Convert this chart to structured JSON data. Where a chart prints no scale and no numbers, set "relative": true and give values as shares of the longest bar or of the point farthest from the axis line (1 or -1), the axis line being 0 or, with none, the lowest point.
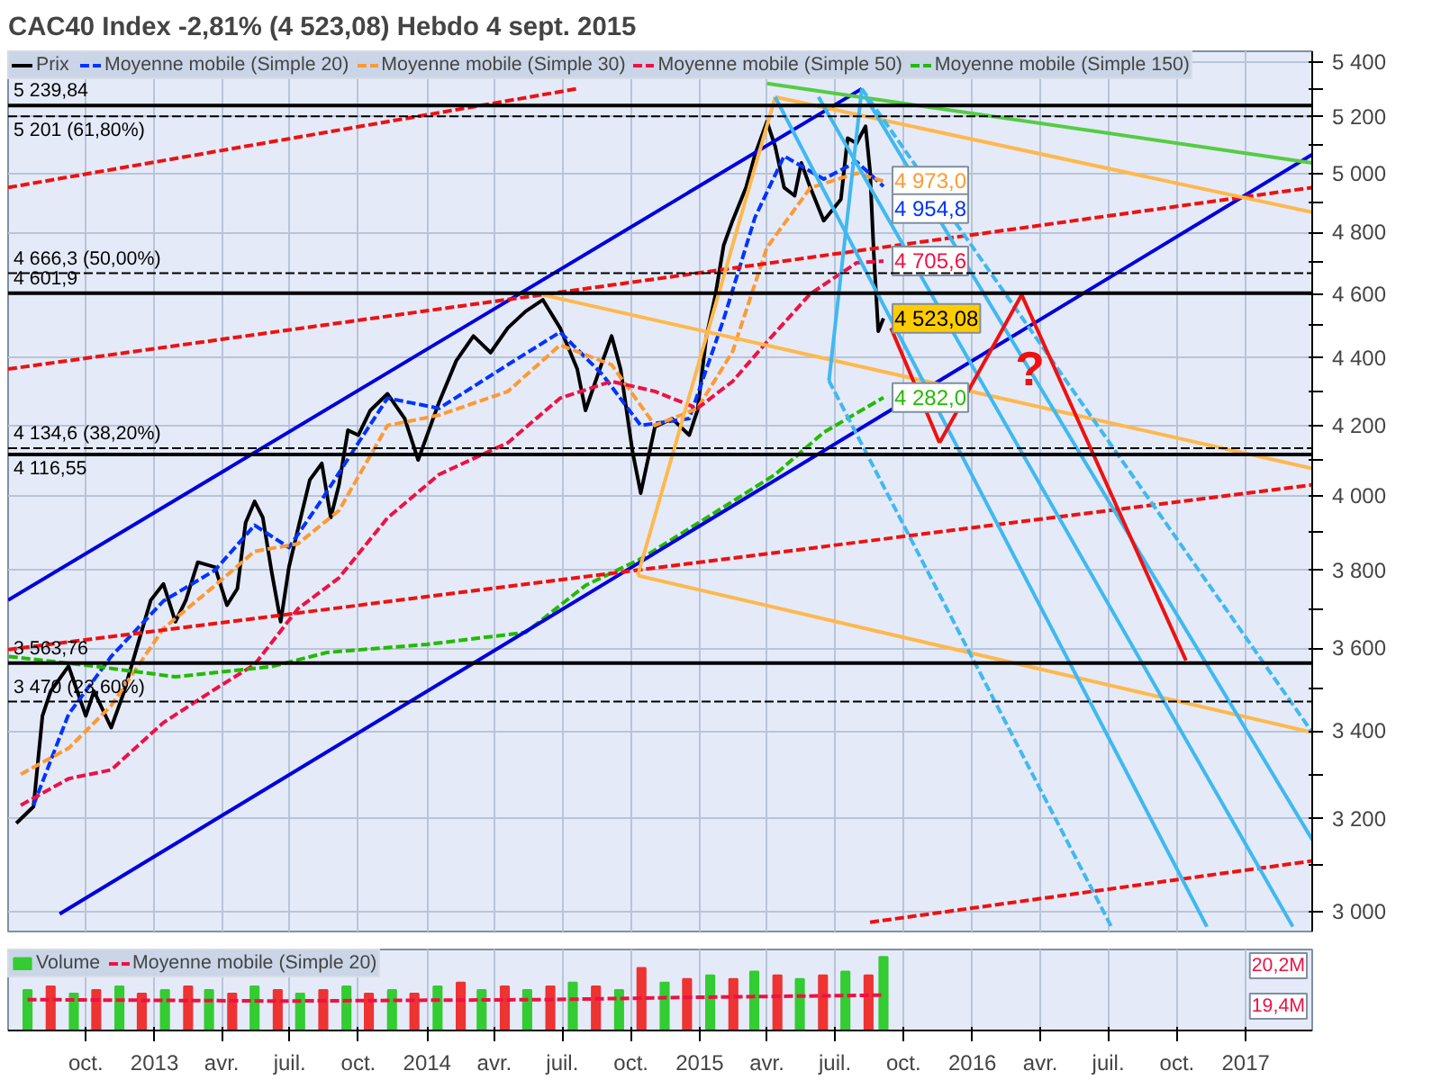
{
  "chart_data": [
    {
      "type": "line",
      "title": "CAC40 Index   -2,81% (4 523,08)   Hebdo   4 sept. 2015",
      "log": "y",
      "grid": true,
      "legend": "top left",
      "tick_labels": "y",
      "xlim": [
        "2012-06-19",
        "2017-03-31"
      ],
      "ylim": [
        2960,
        5440
      ],
      "xticks": [
        {
          "value": "2012-10-01",
          "label": null
        },
        {
          "value": "2013-01-01",
          "label": null
        },
        {
          "value": "2013-04-01",
          "label": null
        },
        {
          "value": "2013-07-01",
          "label": null
        },
        {
          "value": "2013-10-01",
          "label": null
        },
        {
          "value": "2014-01-01",
          "label": null
        },
        {
          "value": "2014-04-01",
          "label": null
        },
        {
          "value": "2014-07-01",
          "label": null
        },
        {
          "value": "2014-10-01",
          "label": null
        },
        {
          "value": "2015-01-01",
          "label": null
        },
        {
          "value": "2015-04-01",
          "label": null
        },
        {
          "value": "2015-07-01",
          "label": null
        },
        {
          "value": "2015-10-01",
          "label": null
        },
        {
          "value": "2016-01-01",
          "label": null
        },
        {
          "value": "2016-04-01",
          "label": null
        },
        {
          "value": "2016-07-01",
          "label": null
        },
        {
          "value": "2016-10-01",
          "label": null
        },
        {
          "value": "2017-01-01",
          "label": null
        }
      ],
      "yticks": [
        {
          "value": 3000,
          "label": "3 000"
        },
        {
          "value": 3100,
          "label": null
        },
        {
          "value": 3200,
          "label": "3 200"
        },
        {
          "value": 3300,
          "label": null
        },
        {
          "value": 3400,
          "label": "3 400"
        },
        {
          "value": 3500,
          "label": null
        },
        {
          "value": 3600,
          "label": "3 600"
        },
        {
          "value": 3700,
          "label": null
        },
        {
          "value": 3800,
          "label": "3 800"
        },
        {
          "value": 3900,
          "label": null
        },
        {
          "value": 4000,
          "label": "4 000"
        },
        {
          "value": 4100,
          "label": null
        },
        {
          "value": 4200,
          "label": "4 200"
        },
        {
          "value": 4300,
          "label": null
        },
        {
          "value": 4400,
          "label": "4 400"
        },
        {
          "value": 4500,
          "label": null
        },
        {
          "value": 4600,
          "label": "4 600"
        },
        {
          "value": 4700,
          "label": null
        },
        {
          "value": 4800,
          "label": "4 800"
        },
        {
          "value": 4900,
          "label": null
        },
        {
          "value": 5000,
          "label": "5 000"
        },
        {
          "value": 5100,
          "label": null
        },
        {
          "value": 5200,
          "label": "5 200"
        },
        {
          "value": 5300,
          "label": null
        },
        {
          "value": 5400,
          "label": "5 400"
        }
      ],
      "series": [
        {
          "name": "Prix",
          "color": "#000000",
          "line_style": "solid",
          "x": [
            "2012-06-30",
            "2012-07-23",
            "2012-08-04",
            "2012-08-15",
            "2012-09-08",
            "2012-10-01",
            "2012-10-12",
            "2012-11-04",
            "2012-11-20",
            "2012-12-14",
            "2012-12-27",
            "2013-01-13",
            "2013-01-29",
            "2013-02-12",
            "2013-02-28",
            "2013-03-23",
            "2013-04-08",
            "2013-04-22",
            "2013-05-03",
            "2013-05-15",
            "2013-05-26",
            "2013-06-07",
            "2013-06-19",
            "2013-06-30",
            "2013-07-12",
            "2013-07-28",
            "2013-08-13",
            "2013-08-25",
            "2013-09-05",
            "2013-09-17",
            "2013-10-01",
            "2013-10-17",
            "2013-11-09",
            "2013-12-02",
            "2013-12-20",
            "2014-01-17",
            "2014-02-09",
            "2014-03-04",
            "2014-03-27",
            "2014-04-19",
            "2014-05-13",
            "2014-06-05",
            "2014-06-28",
            "2014-07-21",
            "2014-08-01",
            "2014-08-24",
            "2014-09-05",
            "2014-09-17",
            "2014-10-03",
            "2014-10-14",
            "2014-11-02",
            "2014-11-25",
            "2014-12-18",
            "2014-12-29",
            "2015-01-10",
            "2015-01-22",
            "2015-02-02",
            "2015-02-14",
            "2015-03-04",
            "2015-03-16",
            "2015-04-01",
            "2015-04-12",
            "2015-04-24",
            "2015-05-08",
            "2015-05-17",
            "2015-05-29",
            "2015-06-16",
            "2015-07-09",
            "2015-07-18",
            "2015-07-30",
            "2015-08-11",
            "2015-08-17",
            "2015-08-22",
            "2015-08-28",
            "2015-09-04"
          ],
          "values": [
            3190,
            3227,
            3436,
            3495,
            3556,
            3436,
            3495,
            3408,
            3487,
            3638,
            3722,
            3764,
            3667,
            3722,
            3821,
            3808,
            3709,
            3752,
            3927,
            3985,
            3941,
            3794,
            3667,
            3808,
            3909,
            4045,
            4091,
            3941,
            4031,
            4186,
            4172,
            4244,
            4293,
            4220,
            4101,
            4268,
            4392,
            4468,
            4417,
            4493,
            4545,
            4581,
            4493,
            4367,
            4244,
            4392,
            4468,
            4367,
            4125,
            4008,
            4196,
            4220,
            4172,
            4244,
            4468,
            4597,
            4757,
            4839,
            4951,
            5065,
            5182,
            5094,
            4951,
            4923,
            5036,
            4951,
            4839,
            4911,
            5123,
            5105,
            5165,
            5008,
            4730,
            4483,
            4523.08
          ],
          "value_labels": [
            null,
            null,
            null,
            null,
            null,
            null,
            null,
            null,
            null,
            null,
            null,
            null,
            null,
            null,
            null,
            null,
            null,
            null,
            null,
            null,
            null,
            null,
            null,
            null,
            null,
            null,
            null,
            null,
            null,
            null,
            null,
            null,
            null,
            null,
            null,
            null,
            null,
            null,
            null,
            null,
            null,
            null,
            null,
            null,
            null,
            null,
            null,
            null,
            null,
            null,
            null,
            null,
            null,
            null,
            null,
            null,
            null,
            null,
            null,
            null,
            null,
            null,
            null,
            null,
            null,
            null,
            null,
            null,
            null,
            null,
            null,
            null,
            null,
            null,
            "4 523,08"
          ]
        },
        {
          "name": "Moyenne mobile (Simple 20)",
          "color": "#0033ff",
          "line_style": "dashed",
          "x": [
            "2012-07-23",
            "2012-09-08",
            "2012-11-04",
            "2013-01-13",
            "2013-03-23",
            "2013-05-15",
            "2013-06-30",
            "2013-08-13",
            "2013-10-01",
            "2013-11-09",
            "2014-01-17",
            "2014-04-19",
            "2014-06-28",
            "2014-08-24",
            "2014-10-14",
            "2014-12-18",
            "2015-02-02",
            "2015-03-16",
            "2015-04-24",
            "2015-06-16",
            "2015-07-30",
            "2015-09-04"
          ],
          "values": [
            3230,
            3440,
            3580,
            3720,
            3800,
            3920,
            3860,
            3990,
            4150,
            4280,
            4250,
            4380,
            4480,
            4350,
            4200,
            4220,
            4520,
            4850,
            5060,
            4980,
            5040,
            4954.8
          ],
          "value_labels": [
            null,
            null,
            null,
            null,
            null,
            null,
            null,
            null,
            null,
            null,
            null,
            null,
            null,
            null,
            null,
            null,
            null,
            null,
            null,
            null,
            null,
            "4 954,8"
          ]
        },
        {
          "name": "Moyenne mobile (Simple 30)",
          "color": "#ff9933",
          "line_style": "dashed",
          "x": [
            "2012-07-06",
            "2012-09-08",
            "2012-11-04",
            "2013-01-13",
            "2013-03-23",
            "2013-05-15",
            "2013-07-12",
            "2013-09-05",
            "2013-11-09",
            "2014-01-17",
            "2014-04-19",
            "2014-06-28",
            "2014-09-05",
            "2014-11-02",
            "2014-12-29",
            "2015-02-14",
            "2015-04-01",
            "2015-05-29",
            "2015-07-30",
            "2015-09-04"
          ],
          "values": [
            3300,
            3360,
            3460,
            3650,
            3760,
            3850,
            3870,
            3960,
            4200,
            4230,
            4300,
            4440,
            4380,
            4200,
            4250,
            4420,
            4750,
            4950,
            5000,
            4973.0
          ],
          "value_labels": [
            null,
            null,
            null,
            null,
            null,
            null,
            null,
            null,
            null,
            null,
            null,
            null,
            null,
            null,
            null,
            null,
            null,
            null,
            null,
            "4 973,0"
          ]
        },
        {
          "name": "Moyenne mobile (Simple 50)",
          "color": "#ee1144",
          "line_style": "dashed",
          "x": [
            "2012-07-06",
            "2012-09-08",
            "2012-11-04",
            "2013-01-13",
            "2013-03-23",
            "2013-05-15",
            "2013-07-12",
            "2013-09-05",
            "2013-11-09",
            "2014-01-17",
            "2014-04-19",
            "2014-06-28",
            "2014-09-05",
            "2014-11-02",
            "2014-12-29",
            "2015-02-14",
            "2015-04-01",
            "2015-05-29",
            "2015-07-30",
            "2015-09-04"
          ],
          "values": [
            3230,
            3290,
            3310,
            3420,
            3500,
            3560,
            3700,
            3780,
            3940,
            4060,
            4150,
            4280,
            4330,
            4300,
            4250,
            4330,
            4450,
            4600,
            4700,
            4705.6
          ],
          "value_labels": [
            null,
            null,
            null,
            null,
            null,
            null,
            null,
            null,
            null,
            null,
            null,
            null,
            null,
            null,
            null,
            null,
            null,
            null,
            null,
            "4 705,6"
          ]
        },
        {
          "name": "Moyenne mobile (Simple 150)",
          "color": "#22bb00",
          "line_style": "dashed",
          "x": [
            "2012-06-20",
            "2012-10-12",
            "2013-01-29",
            "2013-06-07",
            "2013-08-20",
            "2014-01-01",
            "2014-05-13",
            "2014-08-01",
            "2014-10-14",
            "2015-01-10",
            "2015-04-12",
            "2015-06-16",
            "2015-09-04"
          ],
          "values": [
            3580,
            3556,
            3530,
            3555,
            3590,
            3610,
            3640,
            3760,
            3830,
            3940,
            4060,
            4180,
            4282.0
          ],
          "value_labels": [
            null,
            null,
            null,
            null,
            null,
            null,
            null,
            null,
            null,
            null,
            null,
            null,
            "4 282,0"
          ]
        },
        {
          "color": "#0000dd",
          "line_style": "solid",
          "x": [
            "2012-06-19",
            "2015-08-06"
          ],
          "values": [
            3722,
            5301
          ]
        },
        {
          "color": "#0000dd",
          "line_style": "solid",
          "x": [
            "2012-08-27",
            "2017-03-31"
          ],
          "values": [
            2996,
            5065
          ]
        },
        {
          "color": "#ee1111",
          "line_style": "dashed",
          "x": [
            "2012-06-19",
            "2014-07-21"
          ],
          "values": [
            4951,
            5301
          ]
        },
        {
          "color": "#ee1111",
          "line_style": "dashed",
          "x": [
            "2012-06-19",
            "2017-03-31"
          ],
          "values": [
            4367,
            4951
          ]
        },
        {
          "color": "#ee1111",
          "line_style": "dashed",
          "x": [
            "2012-06-19",
            "2017-03-31"
          ],
          "values": [
            3597,
            4031
          ]
        },
        {
          "color": "#ee1111",
          "line_style": "dashed",
          "x": [
            "2015-08-17",
            "2017-03-31"
          ],
          "values": [
            2979,
            3108
          ]
        },
        {
          "color": "#ffb84d",
          "line_style": "solid",
          "x": [
            "2014-06-05",
            "2017-03-31"
          ],
          "values": [
            4597,
            4077
          ]
        },
        {
          "color": "#ffb84d",
          "line_style": "solid",
          "x": [
            "2014-10-10",
            "2017-03-31"
          ],
          "values": [
            3786,
            3397
          ]
        },
        {
          "color": "#ffb84d",
          "line_style": "solid",
          "x": [
            "2014-10-10",
            "2015-04-12"
          ],
          "values": [
            3786,
            5271
          ]
        },
        {
          "color": "#ffb84d",
          "line_style": "solid",
          "x": [
            "2015-04-12",
            "2017-03-31"
          ],
          "values": [
            5271,
            4867
          ]
        },
        {
          "color": "#55cc44",
          "line_style": "solid",
          "x": [
            "2015-04-01",
            "2017-03-31"
          ],
          "values": [
            5320,
            5036
          ]
        },
        {
          "color": "#40b8f0",
          "line_style": "solid",
          "x": [
            "2015-04-12",
            "2016-11-10"
          ],
          "values": [
            5271,
            2970
          ]
        },
        {
          "color": "#40b8f0",
          "line_style": "solid",
          "x": [
            "2015-06-09",
            "2017-03-05"
          ],
          "values": [
            5271,
            2970
          ]
        },
        {
          "color": "#40b8f0",
          "line_style": "solid",
          "x": [
            "2015-08-11",
            "2017-03-31"
          ],
          "values": [
            5271,
            3154
          ]
        },
        {
          "color": "#40b8f0",
          "line_style": "solid",
          "x": [
            "2015-06-23",
            "2015-08-06"
          ],
          "values": [
            4332,
            5301
          ]
        },
        {
          "color": "#40b8f0",
          "line_style": "dashed",
          "x": [
            "2015-08-06",
            "2017-03-31"
          ],
          "values": [
            5301,
            3397
          ]
        },
        {
          "color": "#40b8f0",
          "line_style": "dashed",
          "x": [
            "2015-06-23",
            "2016-07-05"
          ],
          "values": [
            4332,
            2970
          ]
        },
        {
          "color": "#ee1111",
          "line_style": "solid",
          "x": [
            "2015-09-14",
            "2015-11-18"
          ],
          "values": [
            4493,
            4150
          ]
        },
        {
          "color": "#ee1111",
          "line_style": "solid",
          "x": [
            "2015-11-18",
            "2016-03-07"
          ],
          "values": [
            4150,
            4597
          ]
        },
        {
          "color": "#ee1111",
          "line_style": "solid",
          "x": [
            "2016-03-07",
            "2016-10-13"
          ],
          "values": [
            4597,
            3570
          ]
        }
      ],
      "ref_lines": [
        {
          "axis": "y",
          "value": 5239.84,
          "label": "5 239,84",
          "color": "#000000",
          "line_style": "solid"
        },
        {
          "axis": "y",
          "value": 5201,
          "label": "5 201 (61,80%)",
          "color": "#000000",
          "line_style": "dashed"
        },
        {
          "axis": "y",
          "value": 4666.3,
          "label": "4 666,3 (50,00%)",
          "color": "#000000",
          "line_style": "dashed"
        },
        {
          "axis": "y",
          "value": 4601.9,
          "label": "4 601,9",
          "color": "#000000",
          "line_style": "solid"
        },
        {
          "axis": "y",
          "value": 4134.6,
          "label": "4 134,6 (38,20%)",
          "color": "#000000",
          "line_style": "dashed"
        },
        {
          "axis": "y",
          "value": 4116.55,
          "label": "4 116,55",
          "color": "#000000",
          "line_style": "solid"
        },
        {
          "axis": "y",
          "value": 3563.76,
          "label": "3 563,76",
          "color": "#000000",
          "line_style": "solid"
        },
        {
          "axis": "y",
          "value": 3470,
          "label": "3 470 (23,60%)",
          "color": "#000000",
          "line_style": "dashed"
        }
      ],
      "annotations": [
        {
          "text": "?",
          "x": "2016-03-18",
          "y": 4367
        }
      ]
    },
    {
      "type": "bar",
      "relative": true,
      "grid": "x",
      "legend": "top left",
      "tick_labels": "x",
      "xlim": [
        "2012-06-19",
        "2017-03-31"
      ],
      "xticks": [
        {
          "value": "2012-10-01",
          "label": "oct."
        },
        {
          "value": "2013-01-01",
          "label": "2013"
        },
        {
          "value": "2013-04-01",
          "label": "avr."
        },
        {
          "value": "2013-07-01",
          "label": "juil."
        },
        {
          "value": "2013-10-01",
          "label": "oct."
        },
        {
          "value": "2014-01-01",
          "label": "2014"
        },
        {
          "value": "2014-04-01",
          "label": "avr."
        },
        {
          "value": "2014-07-01",
          "label": "juil."
        },
        {
          "value": "2014-10-01",
          "label": "oct."
        },
        {
          "value": "2015-01-01",
          "label": "2015"
        },
        {
          "value": "2015-04-01",
          "label": "avr."
        },
        {
          "value": "2015-07-01",
          "label": "juil."
        },
        {
          "value": "2015-10-01",
          "label": "oct."
        },
        {
          "value": "2016-01-01",
          "label": "2016"
        },
        {
          "value": "2016-04-01",
          "label": "avr."
        },
        {
          "value": "2016-07-01",
          "label": "juil."
        },
        {
          "value": "2016-10-01",
          "label": "oct."
        },
        {
          "value": "2017-01-01",
          "label": "2017"
        }
      ],
      "series": [
        {
          "name": "Volume",
          "x": [
            "2012-07-15",
            "2012-08-15",
            "2012-09-15",
            "2012-10-15",
            "2012-11-15",
            "2012-12-15",
            "2013-01-15",
            "2013-02-15",
            "2013-03-15",
            "2013-04-15",
            "2013-05-15",
            "2013-06-15",
            "2013-07-15",
            "2013-08-15",
            "2013-09-15",
            "2013-10-15",
            "2013-11-15",
            "2013-12-15",
            "2014-01-15",
            "2014-02-15",
            "2014-03-15",
            "2014-04-15",
            "2014-05-15",
            "2014-06-15",
            "2014-07-15",
            "2014-08-15",
            "2014-09-15",
            "2014-10-15",
            "2014-11-15",
            "2014-12-15",
            "2015-01-15",
            "2015-02-15",
            "2015-03-15",
            "2015-04-15",
            "2015-05-15",
            "2015-06-15",
            "2015-07-15",
            "2015-08-15",
            "2015-09-04"
          ],
          "values": [
            0.55,
            0.6,
            0.5,
            0.55,
            0.6,
            0.5,
            0.55,
            0.6,
            0.55,
            0.5,
            0.6,
            0.55,
            0.5,
            0.55,
            0.6,
            0.5,
            0.55,
            0.5,
            0.6,
            0.65,
            0.55,
            0.6,
            0.55,
            0.6,
            0.65,
            0.6,
            0.55,
            0.85,
            0.65,
            0.7,
            0.75,
            0.7,
            0.8,
            0.75,
            0.7,
            0.75,
            0.8,
            0.75,
            1
          ],
          "colors": [
            "#33cc33",
            "#ee3333",
            "#33cc33",
            "#ee3333",
            "#33cc33",
            "#ee3333",
            "#33cc33",
            "#ee3333",
            "#33cc33",
            "#ee3333",
            "#33cc33",
            "#ee3333",
            "#33cc33",
            "#ee3333",
            "#33cc33",
            "#ee3333",
            "#33cc33",
            "#ee3333",
            "#33cc33",
            "#ee3333",
            "#33cc33",
            "#ee3333",
            "#33cc33",
            "#ee3333",
            "#33cc33",
            "#ee3333",
            "#33cc33",
            "#ee3333",
            "#33cc33",
            "#ee3333",
            "#33cc33",
            "#ee3333",
            "#33cc33",
            "#ee3333",
            "#33cc33",
            "#ee3333",
            "#33cc33",
            "#ee3333",
            "#33cc33"
          ],
          "color": "#33cc33",
          "type": "bar"
        },
        {
          "name": "Moyenne mobile (Simple 20)",
          "type": "line",
          "color": "#ee1144",
          "line_style": "dashed",
          "x": [
            "2012-07-15",
            "2013-06-15",
            "2014-06-15",
            "2014-12-15",
            "2015-09-04"
          ],
          "values": [
            0.42,
            0.4,
            0.42,
            0.45,
            0.48
          ]
        }
      ],
      "annotations": [
        "20,2M",
        "19,4M"
      ]
    }
  ]
}
